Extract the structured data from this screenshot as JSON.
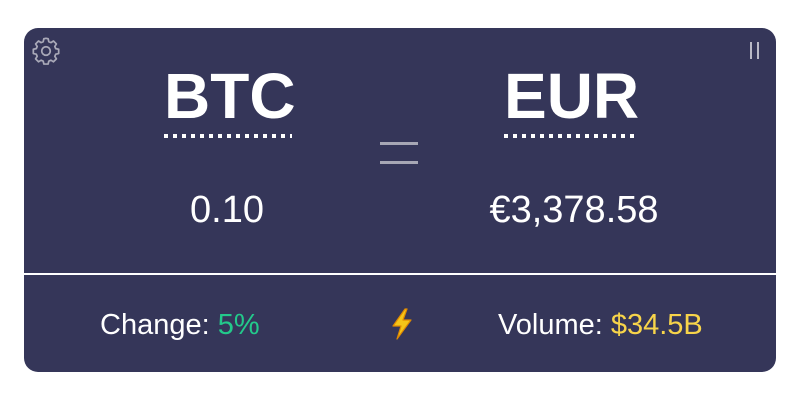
{
  "converter": {
    "from_currency": "BTC",
    "to_currency": "EUR",
    "from_amount": "0.10",
    "to_amount": "€3,378.58"
  },
  "stats": {
    "change_label": "Change:",
    "change_value": "5%",
    "volume_label": "Volume:",
    "volume_value": "$34.5B"
  },
  "icons": {
    "settings": "gear-icon",
    "pause": "pause-icon",
    "equals": "equals-icon",
    "bolt": "lightning-bolt-icon"
  },
  "colors": {
    "background": "#353659",
    "text": "#ffffff",
    "change_positive": "#23c98b",
    "volume": "#f7d44a"
  }
}
